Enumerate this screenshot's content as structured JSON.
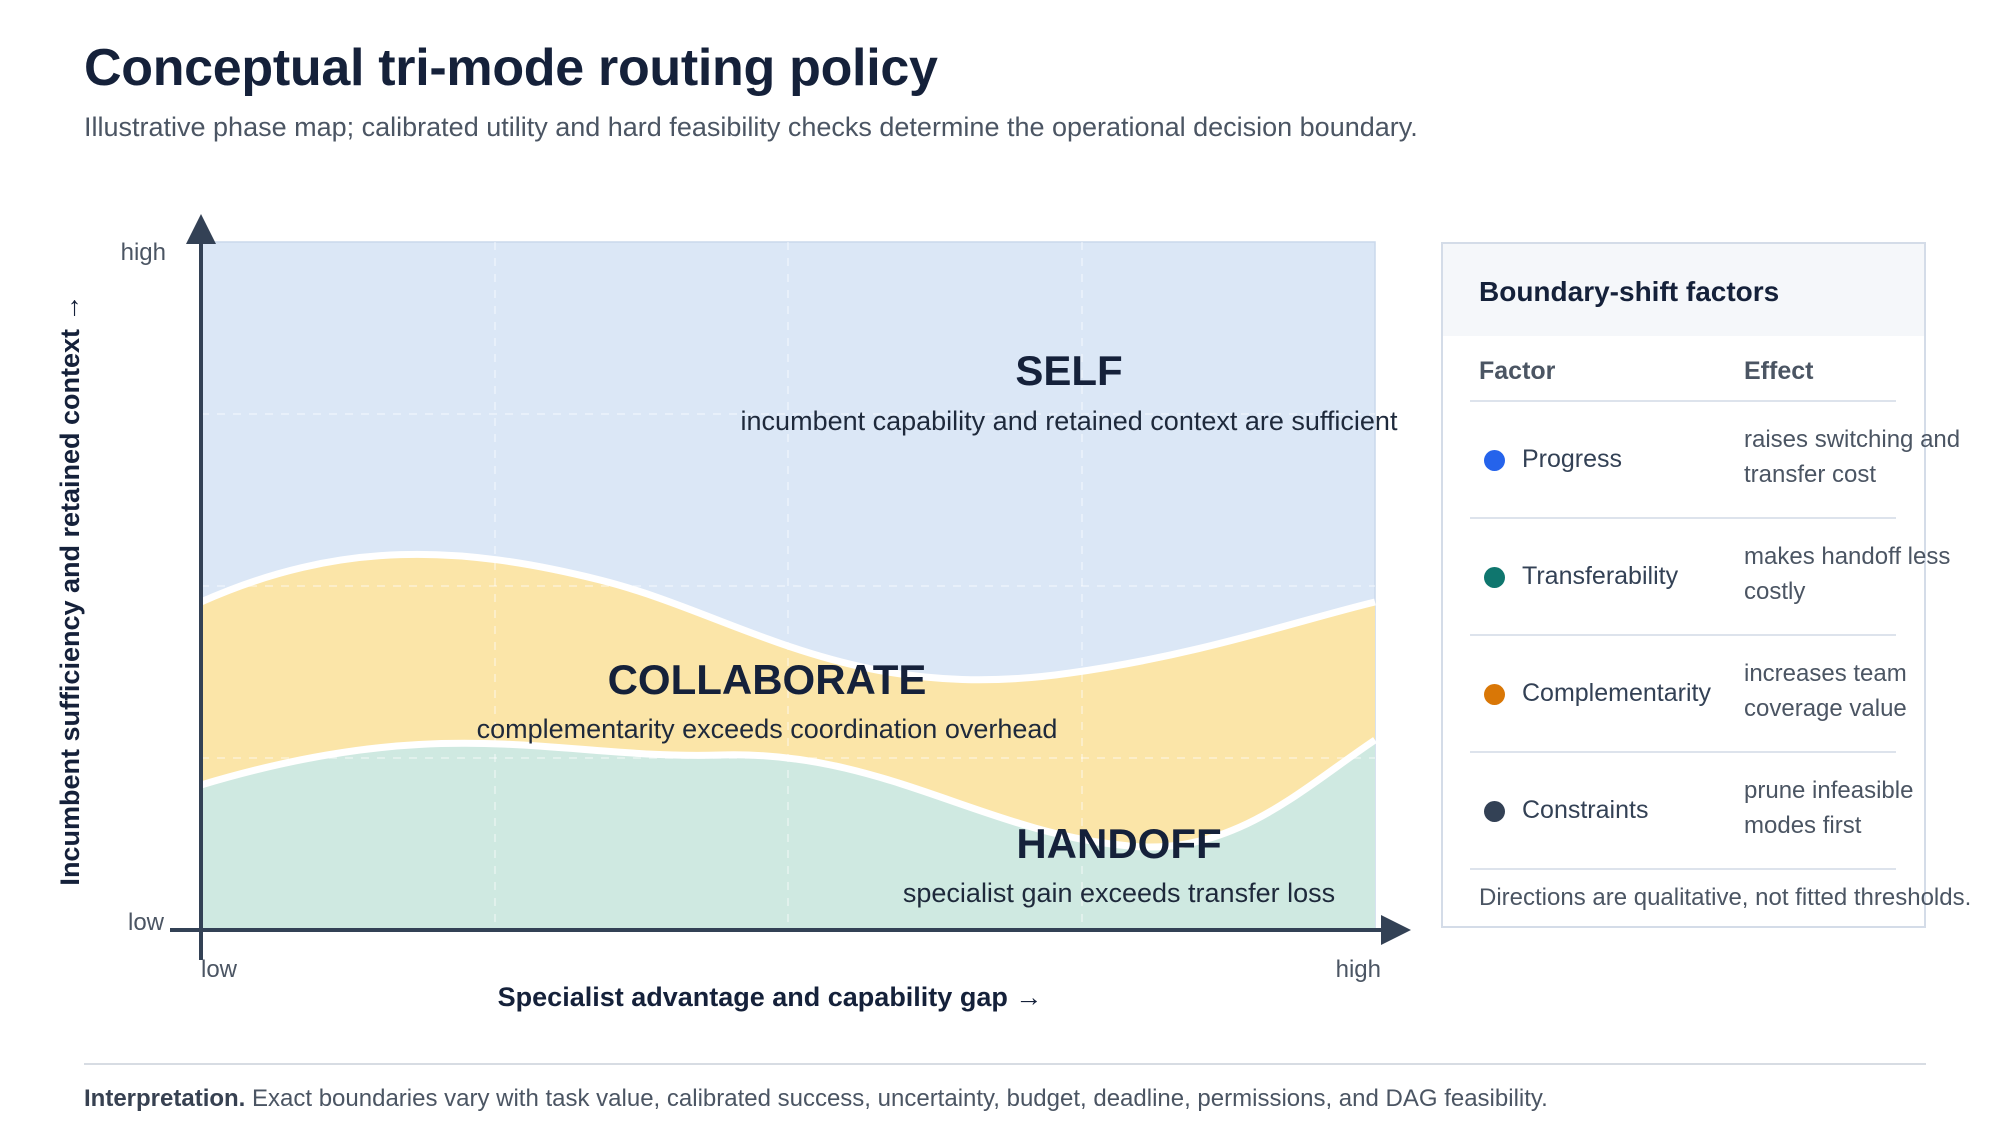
{
  "header": {
    "title": "Conceptual tri-mode routing policy",
    "subtitle": "Illustrative phase map; calibrated utility and hard feasibility checks determine the operational decision boundary."
  },
  "diagram": {
    "y_axis_label": "Incumbent sufficiency and retained context →",
    "x_axis_label": "Specialist advantage and capability gap →",
    "y_high": "high",
    "y_low": "low",
    "x_low": "low",
    "x_high": "high",
    "regions": {
      "self": {
        "label": "SELF",
        "description": "incumbent capability and retained context are sufficient",
        "color": "#dbe7f6"
      },
      "collaborate": {
        "label": "COLLABORATE",
        "description": "complementarity exceeds coordination overhead",
        "color": "#fbe5a8"
      },
      "handoff": {
        "label": "HANDOFF",
        "description": "specialist gain exceeds transfer loss",
        "color": "#cfe9e1"
      }
    }
  },
  "factors_panel": {
    "title": "Boundary-shift factors",
    "col_factor": "Factor",
    "col_effect": "Effect",
    "rows": [
      {
        "factor": "Progress",
        "effect": "raises switching and transfer cost",
        "color": "#2563eb"
      },
      {
        "factor": "Transferability",
        "effect": "makes handoff less costly",
        "color": "#0f766e"
      },
      {
        "factor": "Complementarity",
        "effect": "increases team coverage value",
        "color": "#d97706"
      },
      {
        "factor": "Constraints",
        "effect": "prune infeasible modes first",
        "color": "#334155"
      }
    ],
    "note": "Directions are qualitative, not fitted thresholds."
  },
  "footer": {
    "label": "Interpretation.",
    "text": "Exact boundaries vary with task value, calibrated success, uncertainty, budget, deadline, permissions, and DAG feasibility."
  }
}
